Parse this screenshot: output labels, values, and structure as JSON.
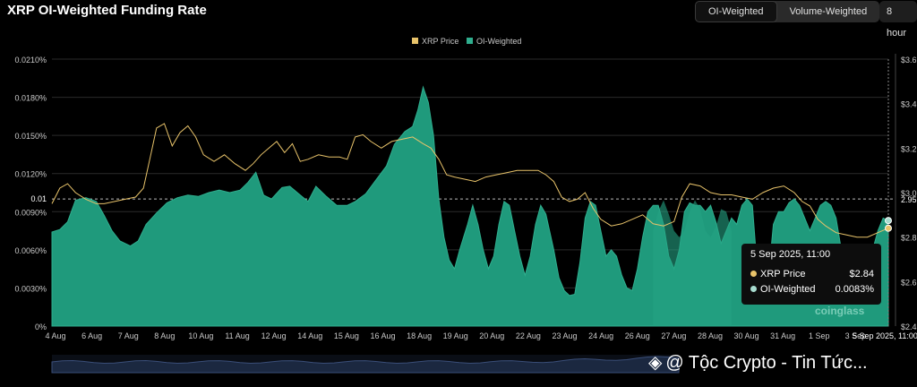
{
  "header": {
    "title": "XRP OI-Weighted Funding Rate",
    "toggle": [
      "OI-Weighted",
      "Volume-Weighted"
    ],
    "interval": "8 hour"
  },
  "colors": {
    "area": "#2fae8e",
    "area_fill": "#1f9a7c",
    "price": "#e8c36a",
    "grid": "#2a2a2a",
    "axis_text": "#c8c8c8"
  },
  "chart_data": {
    "type": "area",
    "title": "XRP OI-Weighted Funding Rate",
    "legend": [
      "XRP Price",
      "OI-Weighted"
    ],
    "x_ticks": [
      "4 Aug",
      "6 Aug",
      "7 Aug",
      "8 Aug",
      "10 Aug",
      "11 Aug",
      "12 Aug",
      "14 Aug",
      "15 Aug",
      "16 Aug",
      "18 Aug",
      "19 Aug",
      "20 Aug",
      "22 Aug",
      "23 Aug",
      "24 Aug",
      "26 Aug",
      "27 Aug",
      "28 Aug",
      "30 Aug",
      "31 Aug",
      "1 Sep",
      "3 Sep",
      "5 Sep 2025, 11:00"
    ],
    "y_left": {
      "min": 0,
      "max": 0.021,
      "ticks": [
        "0%",
        "0.0030%",
        "0.0060%",
        "0.0090%",
        "0.0120%",
        "0.0150%",
        "0.0180%",
        "0.0210%"
      ],
      "values": [
        0,
        0.003,
        0.006,
        0.009,
        0.012,
        0.015,
        0.018,
        0.021
      ]
    },
    "y_right": {
      "min": 2.4,
      "max": 3.6,
      "ticks": [
        "$2.4",
        "$2.6",
        "$2.8",
        "$3.0",
        "$3.2",
        "$3.4",
        "$3.6"
      ],
      "values": [
        2.4,
        2.6,
        2.8,
        3.0,
        3.2,
        3.4,
        3.6
      ]
    },
    "reference": {
      "label_left": "0.01",
      "label_right": "2.95",
      "value_left": 0.01
    },
    "x_range": [
      0,
      32
    ],
    "funding": [
      [
        0,
        0.0074
      ],
      [
        0.3,
        0.0076
      ],
      [
        0.6,
        0.0082
      ],
      [
        0.9,
        0.0099
      ],
      [
        1.3,
        0.0101
      ],
      [
        1.7,
        0.0098
      ],
      [
        2.0,
        0.0087
      ],
      [
        2.3,
        0.0075
      ],
      [
        2.6,
        0.0067
      ],
      [
        3.0,
        0.0063
      ],
      [
        3.3,
        0.0067
      ],
      [
        3.6,
        0.008
      ],
      [
        4.0,
        0.0089
      ],
      [
        4.4,
        0.0097
      ],
      [
        4.8,
        0.0101
      ],
      [
        5.2,
        0.0103
      ],
      [
        5.6,
        0.0102
      ],
      [
        6.0,
        0.0105
      ],
      [
        6.4,
        0.0107
      ],
      [
        6.8,
        0.0105
      ],
      [
        7.2,
        0.0107
      ],
      [
        7.5,
        0.0113
      ],
      [
        7.8,
        0.0121
      ],
      [
        8.1,
        0.0103
      ],
      [
        8.4,
        0.01
      ],
      [
        8.8,
        0.0109
      ],
      [
        9.1,
        0.011
      ],
      [
        9.5,
        0.0103
      ],
      [
        9.8,
        0.0098
      ],
      [
        10.1,
        0.011
      ],
      [
        10.5,
        0.0102
      ],
      [
        10.9,
        0.0095
      ],
      [
        11.3,
        0.0095
      ],
      [
        11.6,
        0.0098
      ],
      [
        12.0,
        0.0104
      ],
      [
        12.4,
        0.0115
      ],
      [
        12.8,
        0.0126
      ],
      [
        13.1,
        0.0143
      ],
      [
        13.5,
        0.0153
      ],
      [
        13.8,
        0.0157
      ],
      [
        14.0,
        0.017
      ],
      [
        14.2,
        0.0188
      ],
      [
        14.4,
        0.0176
      ],
      [
        14.6,
        0.015
      ],
      [
        14.8,
        0.01
      ],
      [
        15.0,
        0.007
      ],
      [
        15.2,
        0.0052
      ],
      [
        15.4,
        0.0045
      ],
      [
        15.6,
        0.006
      ],
      [
        15.9,
        0.008
      ],
      [
        16.1,
        0.0095
      ],
      [
        16.3,
        0.008
      ],
      [
        16.5,
        0.006
      ],
      [
        16.7,
        0.0045
      ],
      [
        16.9,
        0.0055
      ],
      [
        17.1,
        0.008
      ],
      [
        17.3,
        0.0098
      ],
      [
        17.5,
        0.0095
      ],
      [
        17.7,
        0.0075
      ],
      [
        17.9,
        0.0055
      ],
      [
        18.1,
        0.004
      ],
      [
        18.3,
        0.0055
      ],
      [
        18.5,
        0.008
      ],
      [
        18.7,
        0.0095
      ],
      [
        18.9,
        0.0088
      ],
      [
        19.2,
        0.006
      ],
      [
        19.4,
        0.0038
      ],
      [
        19.6,
        0.0028
      ],
      [
        19.8,
        0.0024
      ],
      [
        20.0,
        0.0025
      ],
      [
        20.2,
        0.005
      ],
      [
        20.4,
        0.0085
      ],
      [
        20.6,
        0.0098
      ],
      [
        20.8,
        0.0095
      ],
      [
        21.0,
        0.0075
      ],
      [
        21.2,
        0.0055
      ],
      [
        21.4,
        0.006
      ],
      [
        21.6,
        0.0055
      ],
      [
        21.8,
        0.004
      ],
      [
        22.0,
        0.003
      ],
      [
        22.2,
        0.0028
      ],
      [
        22.4,
        0.0045
      ],
      [
        22.6,
        0.007
      ],
      [
        22.8,
        0.009
      ],
      [
        23.0,
        0.0095
      ],
      [
        23.2,
        0.0095
      ],
      [
        23.4,
        0.008
      ],
      [
        23.6,
        0.0055
      ],
      [
        23.8,
        0.0045
      ],
      [
        24.0,
        0.006
      ],
      [
        24.2,
        0.009
      ],
      [
        24.4,
        0.0097
      ],
      [
        24.6,
        0.0095
      ],
      [
        24.8,
        0.0095
      ],
      [
        25.0,
        0.009
      ],
      [
        25.2,
        0.0095
      ],
      [
        25.4,
        0.0082
      ],
      [
        25.6,
        0.0065
      ],
      [
        25.8,
        0.0075
      ],
      [
        26.0,
        0.0085
      ],
      [
        26.2,
        0.008
      ],
      [
        26.4,
        0.0095
      ],
      [
        26.6,
        0.01
      ],
      [
        26.8,
        0.0095
      ],
      [
        27.0,
        0.004
      ],
      [
        27.2,
        0.002
      ],
      [
        27.4,
        0.0035
      ],
      [
        27.6,
        0.008
      ],
      [
        27.8,
        0.009
      ],
      [
        28.0,
        0.009
      ],
      [
        28.2,
        0.0097
      ],
      [
        28.4,
        0.01
      ],
      [
        28.6,
        0.0095
      ],
      [
        28.8,
        0.0085
      ],
      [
        29.0,
        0.0075
      ],
      [
        29.2,
        0.0085
      ],
      [
        29.4,
        0.0095
      ],
      [
        29.6,
        0.0098
      ],
      [
        29.8,
        0.0095
      ],
      [
        30.0,
        0.0085
      ],
      [
        30.2,
        0.006
      ],
      [
        30.4,
        0.0045
      ],
      [
        30.6,
        0.0035
      ],
      [
        30.8,
        0.003
      ],
      [
        31.0,
        0.0038
      ],
      [
        31.2,
        0.0055
      ],
      [
        31.4,
        0.006
      ],
      [
        31.6,
        0.0075
      ],
      [
        31.8,
        0.0085
      ],
      [
        32.0,
        0.0083
      ]
    ],
    "funding_overlay": [
      [
        23.0,
        0.0075
      ],
      [
        23.2,
        0.009
      ],
      [
        23.4,
        0.0099
      ],
      [
        23.6,
        0.0088
      ],
      [
        23.8,
        0.0075
      ],
      [
        24.0,
        0.007
      ],
      [
        24.2,
        0.0075
      ],
      [
        24.4,
        0.009
      ],
      [
        24.6,
        0.0099
      ],
      [
        24.8,
        0.0092
      ],
      [
        25.0,
        0.0075
      ],
      [
        25.2,
        0.007
      ],
      [
        25.4,
        0.0078
      ],
      [
        25.6,
        0.0092
      ],
      [
        25.8,
        0.009
      ],
      [
        26.0,
        0.0075
      ]
    ],
    "price": [
      [
        0,
        2.95
      ],
      [
        0.3,
        3.02
      ],
      [
        0.6,
        3.04
      ],
      [
        0.9,
        3.0
      ],
      [
        1.3,
        2.97
      ],
      [
        1.7,
        2.95
      ],
      [
        2.0,
        2.95
      ],
      [
        2.4,
        2.96
      ],
      [
        2.8,
        2.97
      ],
      [
        3.2,
        2.98
      ],
      [
        3.5,
        3.02
      ],
      [
        3.8,
        3.18
      ],
      [
        4.0,
        3.29
      ],
      [
        4.3,
        3.31
      ],
      [
        4.6,
        3.21
      ],
      [
        4.9,
        3.27
      ],
      [
        5.2,
        3.3
      ],
      [
        5.5,
        3.25
      ],
      [
        5.8,
        3.17
      ],
      [
        6.2,
        3.14
      ],
      [
        6.6,
        3.17
      ],
      [
        7.0,
        3.13
      ],
      [
        7.4,
        3.1
      ],
      [
        7.7,
        3.13
      ],
      [
        8.0,
        3.17
      ],
      [
        8.3,
        3.2
      ],
      [
        8.6,
        3.23
      ],
      [
        8.9,
        3.18
      ],
      [
        9.2,
        3.22
      ],
      [
        9.5,
        3.14
      ],
      [
        9.8,
        3.15
      ],
      [
        10.2,
        3.17
      ],
      [
        10.6,
        3.16
      ],
      [
        11.0,
        3.16
      ],
      [
        11.3,
        3.15
      ],
      [
        11.6,
        3.25
      ],
      [
        11.9,
        3.26
      ],
      [
        12.2,
        3.23
      ],
      [
        12.6,
        3.2
      ],
      [
        13.0,
        3.23
      ],
      [
        13.4,
        3.24
      ],
      [
        13.8,
        3.25
      ],
      [
        14.2,
        3.22
      ],
      [
        14.5,
        3.2
      ],
      [
        14.8,
        3.15
      ],
      [
        15.1,
        3.08
      ],
      [
        15.4,
        3.07
      ],
      [
        15.8,
        3.06
      ],
      [
        16.2,
        3.05
      ],
      [
        16.6,
        3.07
      ],
      [
        17.0,
        3.08
      ],
      [
        17.4,
        3.09
      ],
      [
        17.8,
        3.1
      ],
      [
        18.2,
        3.1
      ],
      [
        18.6,
        3.1
      ],
      [
        18.9,
        3.08
      ],
      [
        19.2,
        3.05
      ],
      [
        19.5,
        2.98
      ],
      [
        19.8,
        2.96
      ],
      [
        20.1,
        2.97
      ],
      [
        20.4,
        3.0
      ],
      [
        20.7,
        2.93
      ],
      [
        21.0,
        2.88
      ],
      [
        21.4,
        2.85
      ],
      [
        21.8,
        2.86
      ],
      [
        22.2,
        2.88
      ],
      [
        22.6,
        2.9
      ],
      [
        23.0,
        2.86
      ],
      [
        23.4,
        2.85
      ],
      [
        23.8,
        2.87
      ],
      [
        24.1,
        2.98
      ],
      [
        24.4,
        3.04
      ],
      [
        24.8,
        3.03
      ],
      [
        25.2,
        3.0
      ],
      [
        25.6,
        2.99
      ],
      [
        26.0,
        2.99
      ],
      [
        26.4,
        2.98
      ],
      [
        26.8,
        2.97
      ],
      [
        27.2,
        3.0
      ],
      [
        27.6,
        3.02
      ],
      [
        28.0,
        3.03
      ],
      [
        28.4,
        3.0
      ],
      [
        28.7,
        2.96
      ],
      [
        29.0,
        2.94
      ],
      [
        29.3,
        2.88
      ],
      [
        29.6,
        2.85
      ],
      [
        30.0,
        2.82
      ],
      [
        30.4,
        2.81
      ],
      [
        30.8,
        2.8
      ],
      [
        31.2,
        2.8
      ],
      [
        31.6,
        2.82
      ],
      [
        32.0,
        2.84
      ]
    ],
    "highlight": {
      "x": 32.0,
      "price": 2.84,
      "funding": 0.0083
    }
  },
  "legend": {
    "price_label": "XRP Price",
    "oi_label": "OI-Weighted"
  },
  "tooltip": {
    "time": "5 Sep 2025, 11:00",
    "price_label": "XRP Price",
    "price_value": "$2.84",
    "oi_label": "OI-Weighted",
    "oi_value": "0.0083%"
  },
  "brand_logo": "coinglass",
  "watermark": "@ Tộc Crypto - Tin Tức..."
}
